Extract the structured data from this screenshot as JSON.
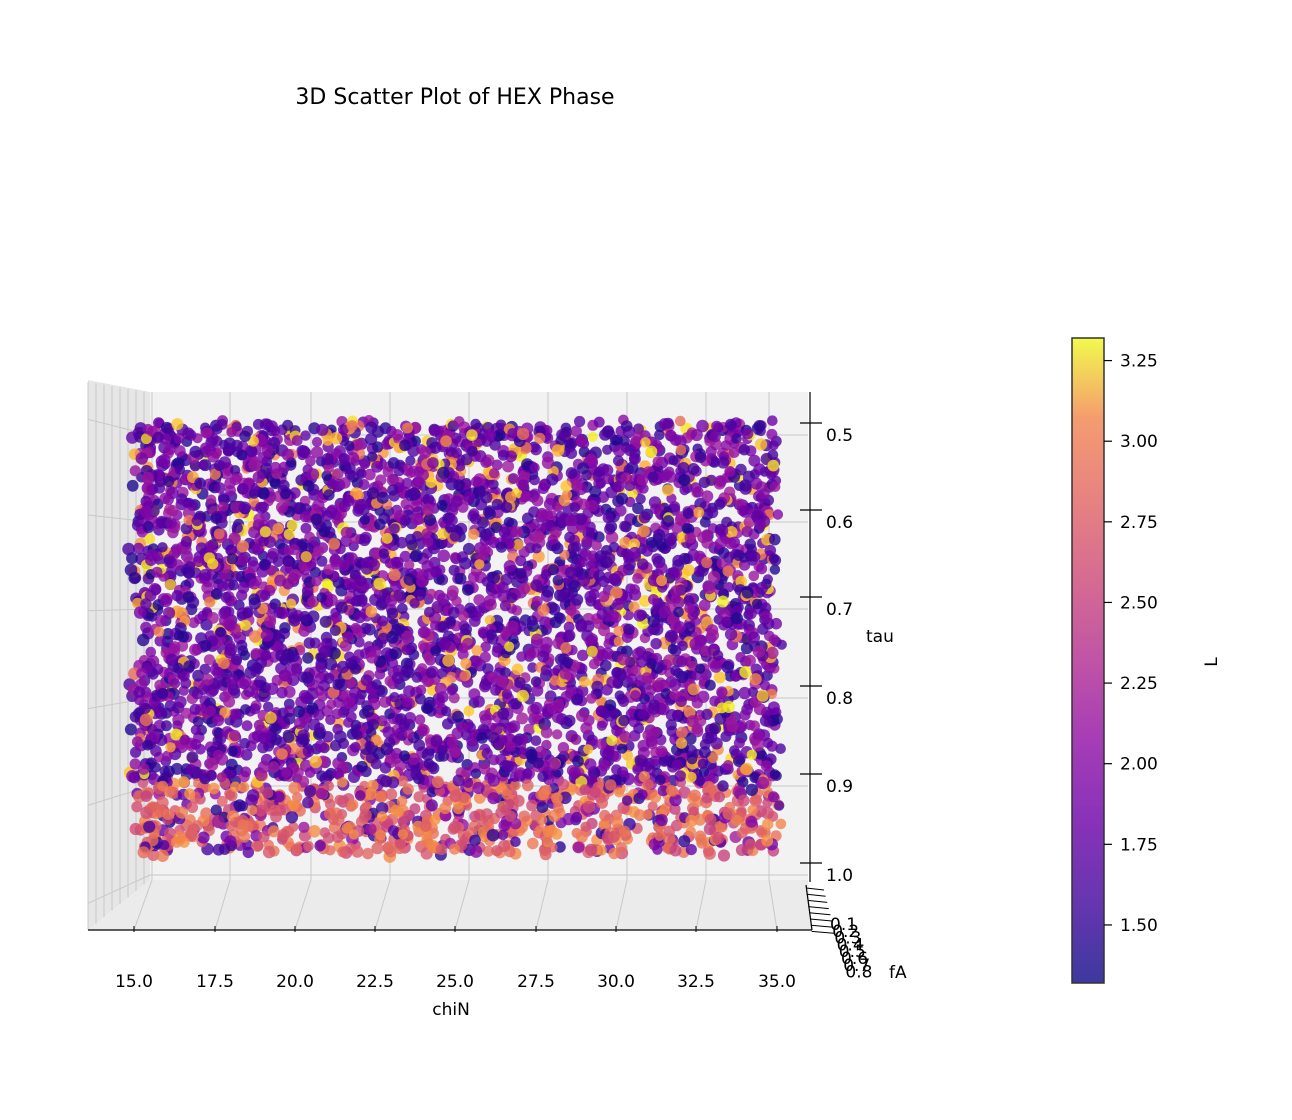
{
  "chart_data": {
    "type": "scatter",
    "subtype": "3d-scatter",
    "title": "3D Scatter Plot of HEX Phase",
    "xlabel": "chiN",
    "ylabel": "fA",
    "zlabel": "tau",
    "x_ticks": [
      "15.0",
      "17.5",
      "20.0",
      "22.5",
      "25.0",
      "27.5",
      "30.0",
      "32.5",
      "35.0"
    ],
    "z_ticks": [
      "0.5",
      "0.6",
      "0.7",
      "0.8",
      "0.9",
      "1.0"
    ],
    "y_ticks": [
      "0.1",
      "0.2",
      "0.3",
      "0.4",
      "0.5",
      "0.6",
      "0.7",
      "0.8"
    ],
    "xlim": [
      14.0,
      36.0
    ],
    "zlim": [
      0.46,
      1.01
    ],
    "ylim": [
      0.1,
      0.8
    ],
    "view": "front (looking along fA axis)",
    "grid": true,
    "colormap": "plasma",
    "colorbar": {
      "label": "L",
      "range": [
        1.32,
        3.32
      ],
      "ticks": [
        "1.50",
        "1.75",
        "2.00",
        "2.25",
        "2.50",
        "2.75",
        "3.00",
        "3.25"
      ],
      "alpha": 0.8
    },
    "point_count": 5000,
    "marker_alpha": 0.8,
    "data_summary": "Points fill chiN 15–35 and tau 0.49–0.98 uniformly; L mostly 1.5–2.0 with scattered high values (2.5–3.3), and higher L (2.3–2.8) concentrated at tau 0.9–1.0."
  }
}
